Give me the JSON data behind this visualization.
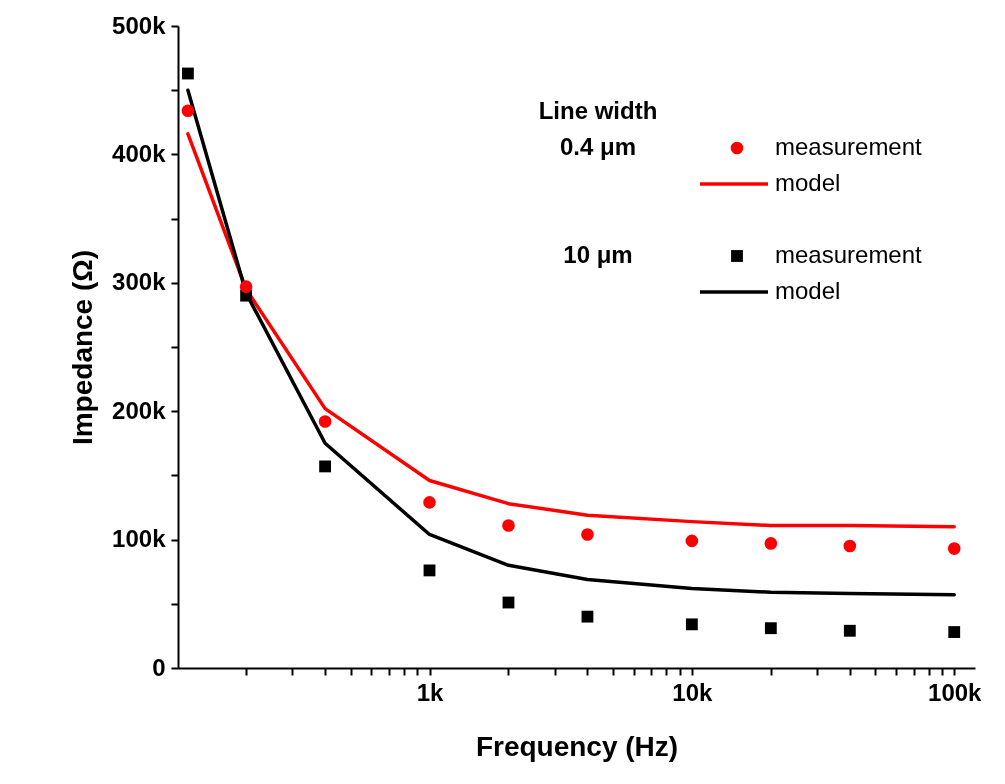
{
  "chart_data": {
    "type": "line",
    "xlabel": "Frequency (Hz)",
    "ylabel": "Impedance (Ω)",
    "legend_title": "Line width",
    "legend": "top right",
    "log": "x",
    "grid": false,
    "x": [
      120,
      200,
      400,
      1000,
      2000,
      4000,
      10000,
      20000,
      40000,
      100000
    ],
    "xlim": [
      110,
      120000
    ],
    "xticks": [
      {
        "value": 200,
        "label": null
      },
      {
        "value": 300,
        "label": null
      },
      {
        "value": 400,
        "label": null
      },
      {
        "value": 500,
        "label": null
      },
      {
        "value": 600,
        "label": null
      },
      {
        "value": 700,
        "label": null
      },
      {
        "value": 800,
        "label": null
      },
      {
        "value": 900,
        "label": null
      },
      {
        "value": 1000,
        "label": "1k"
      },
      {
        "value": 2000,
        "label": null
      },
      {
        "value": 3000,
        "label": null
      },
      {
        "value": 4000,
        "label": null
      },
      {
        "value": 5000,
        "label": null
      },
      {
        "value": 6000,
        "label": null
      },
      {
        "value": 7000,
        "label": null
      },
      {
        "value": 8000,
        "label": null
      },
      {
        "value": 9000,
        "label": null
      },
      {
        "value": 10000,
        "label": "10k"
      },
      {
        "value": 20000,
        "label": null
      },
      {
        "value": 30000,
        "label": null
      },
      {
        "value": 40000,
        "label": null
      },
      {
        "value": 50000,
        "label": null
      },
      {
        "value": 60000,
        "label": null
      },
      {
        "value": 70000,
        "label": null
      },
      {
        "value": 80000,
        "label": null
      },
      {
        "value": 90000,
        "label": null
      },
      {
        "value": 100000,
        "label": "100k"
      }
    ],
    "ylim": [
      0,
      500000
    ],
    "yticks": [
      0,
      {
        "value": 50000,
        "label": null
      },
      {
        "value": 100000,
        "label": "100k"
      },
      {
        "value": 150000,
        "label": null
      },
      {
        "value": 200000,
        "label": "200k"
      },
      {
        "value": 250000,
        "label": null
      },
      {
        "value": 300000,
        "label": "300k"
      },
      {
        "value": 350000,
        "label": null
      },
      {
        "value": 400000,
        "label": "400k"
      },
      {
        "value": 450000,
        "label": null
      },
      {
        "value": 500000,
        "label": "500k"
      }
    ],
    "annotations": [
      "0.4 μm",
      "10 μm"
    ],
    "series": [
      {
        "name": "measurement",
        "type": "scatter",
        "marker": "circle",
        "color": "#ff0000",
        "values": [
          434000,
          297000,
          192000,
          129000,
          111000,
          104000,
          99000,
          97000,
          95000,
          93000
        ]
      },
      {
        "name": "model",
        "color": "#ff0000",
        "values": [
          416000,
          295000,
          202000,
          146000,
          128000,
          119000,
          114000,
          111000,
          111000,
          110000
        ]
      },
      {
        "name": "measurement",
        "type": "scatter",
        "marker": "square",
        "color": "#000000",
        "values": [
          463000,
          290000,
          157000,
          76000,
          51000,
          40000,
          34000,
          31000,
          29000,
          28000
        ]
      },
      {
        "name": "model",
        "color": "#000000",
        "values": [
          450000,
          292000,
          175000,
          104000,
          80000,
          69000,
          62000,
          59000,
          58000,
          57000
        ]
      }
    ]
  }
}
